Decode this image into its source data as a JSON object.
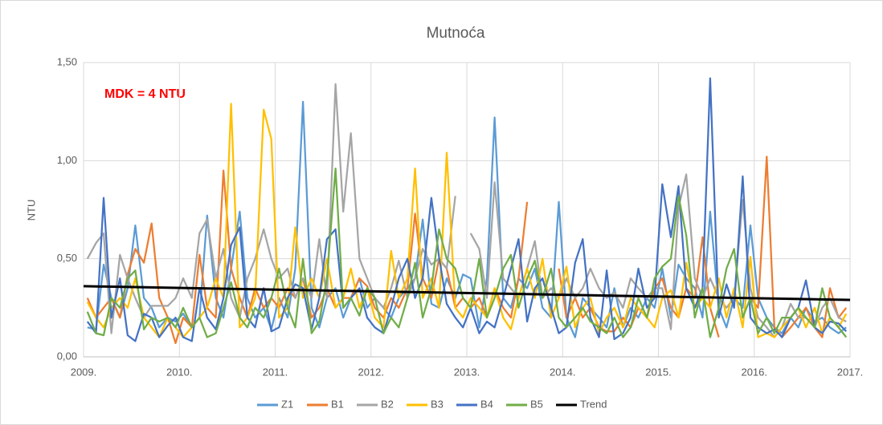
{
  "chart_data": {
    "type": "line",
    "title": "Mutnoća",
    "y_label": "NTU",
    "annotation": "MDK = 4 NTU",
    "xlim": [
      2009,
      2017
    ],
    "xticks": [
      {
        "value": 2009,
        "label": "2009."
      },
      {
        "value": 2010,
        "label": "2010."
      },
      {
        "value": 2011,
        "label": "2011."
      },
      {
        "value": 2012,
        "label": "2012."
      },
      {
        "value": 2013,
        "label": "2013."
      },
      {
        "value": 2014,
        "label": "2014."
      },
      {
        "value": 2015,
        "label": "2015."
      },
      {
        "value": 2016,
        "label": "2016."
      },
      {
        "value": 2017,
        "label": "2017."
      }
    ],
    "ylim": [
      0,
      1.5
    ],
    "yticks": [
      {
        "value": 0,
        "label": "0,00"
      },
      {
        "value": 0.5,
        "label": "0,50"
      },
      {
        "value": 1,
        "label": "1,00"
      },
      {
        "value": 1.5,
        "label": "1,50"
      }
    ],
    "grid": true,
    "legend": "bottom",
    "x": [
      2009.04,
      2009.13,
      2009.21,
      2009.29,
      2009.38,
      2009.46,
      2009.54,
      2009.63,
      2009.71,
      2009.79,
      2009.88,
      2009.96,
      2010.04,
      2010.13,
      2010.21,
      2010.29,
      2010.38,
      2010.46,
      2010.54,
      2010.63,
      2010.71,
      2010.79,
      2010.88,
      2010.96,
      2011.04,
      2011.13,
      2011.21,
      2011.29,
      2011.38,
      2011.46,
      2011.54,
      2011.63,
      2011.71,
      2011.79,
      2011.88,
      2011.96,
      2012.04,
      2012.13,
      2012.21,
      2012.29,
      2012.38,
      2012.46,
      2012.54,
      2012.63,
      2012.71,
      2012.79,
      2012.88,
      2012.96,
      2013.04,
      2013.13,
      2013.21,
      2013.29,
      2013.38,
      2013.46,
      2013.54,
      2013.63,
      2013.71,
      2013.79,
      2013.88,
      2013.96,
      2014.04,
      2014.13,
      2014.21,
      2014.29,
      2014.38,
      2014.46,
      2014.54,
      2014.63,
      2014.71,
      2014.79,
      2014.88,
      2014.96,
      2015.04,
      2015.13,
      2015.21,
      2015.29,
      2015.38,
      2015.46,
      2015.54,
      2015.63,
      2015.71,
      2015.79,
      2015.88,
      2015.96,
      2016.04,
      2016.13,
      2016.21,
      2016.29,
      2016.38,
      2016.46,
      2016.54,
      2016.63,
      2016.71,
      2016.79,
      2016.88,
      2016.96
    ],
    "series": [
      {
        "name": "Z1",
        "color": "#5b9bd5",
        "values": [
          0.15,
          0.14,
          0.47,
          0.3,
          0.2,
          0.35,
          0.67,
          0.3,
          0.25,
          0.15,
          0.2,
          0.18,
          0.22,
          0.15,
          0.2,
          0.72,
          0.3,
          0.2,
          0.45,
          0.74,
          0.3,
          0.2,
          0.25,
          0.14,
          0.3,
          0.2,
          0.45,
          1.3,
          0.25,
          0.15,
          0.3,
          0.35,
          0.2,
          0.3,
          0.4,
          0.25,
          0.3,
          0.25,
          0.2,
          0.3,
          0.35,
          0.4,
          0.7,
          0.27,
          0.25,
          0.4,
          0.3,
          0.42,
          0.4,
          0.15,
          0.4,
          1.22,
          0.3,
          0.25,
          0.4,
          0.35,
          0.45,
          0.25,
          0.2,
          0.79,
          0.2,
          0.1,
          0.3,
          0.25,
          0.2,
          0.15,
          0.35,
          0.15,
          0.25,
          0.2,
          0.3,
          0.25,
          0.45,
          0.2,
          0.47,
          0.4,
          0.35,
          0.2,
          0.74,
          0.25,
          0.15,
          0.3,
          0.25,
          0.67,
          0.3,
          0.2,
          0.15,
          0.12,
          0.2,
          0.15,
          0.25,
          0.18,
          0.2,
          0.15,
          0.12,
          0.15
        ]
      },
      {
        "name": "B1",
        "color": "#ed7d31",
        "values": [
          0.3,
          0.2,
          0.25,
          0.3,
          0.2,
          0.42,
          0.55,
          0.48,
          0.68,
          0.3,
          0.2,
          0.07,
          0.2,
          0.15,
          0.52,
          0.25,
          0.2,
          0.95,
          0.45,
          0.3,
          0.2,
          0.35,
          0.25,
          0.3,
          0.25,
          0.35,
          0.3,
          0.4,
          0.2,
          0.25,
          0.35,
          0.25,
          0.3,
          0.3,
          0.4,
          0.36,
          0.25,
          0.2,
          0.3,
          0.25,
          0.35,
          0.73,
          0.4,
          0.3,
          0.5,
          0.45,
          0.25,
          0.3,
          0.25,
          0.3,
          0.2,
          0.35,
          0.25,
          0.2,
          0.4,
          0.79,
          null,
          null,
          null,
          0.45,
          0.2,
          0.3,
          0.2,
          0.25,
          0.15,
          0.13,
          0.13,
          0.2,
          0.15,
          0.25,
          0.2,
          0.35,
          0.4,
          0.25,
          0.2,
          0.35,
          0.3,
          0.61,
          0.25,
          0.1,
          null,
          null,
          null,
          0.3,
          0.25,
          1.02,
          0.15,
          0.1,
          0.15,
          0.2,
          0.25,
          0.15,
          0.1,
          0.35,
          0.2,
          0.25
        ]
      },
      {
        "name": "B2",
        "color": "#a5a5a5",
        "values": [
          0.5,
          0.58,
          0.63,
          0.12,
          0.52,
          0.4,
          0.3,
          0.2,
          0.26,
          0.26,
          0.26,
          0.3,
          0.4,
          0.3,
          0.63,
          0.7,
          0.4,
          0.55,
          0.3,
          0.2,
          0.4,
          0.5,
          0.65,
          0.5,
          0.4,
          0.45,
          0.3,
          0.4,
          0.3,
          0.6,
          0.3,
          1.39,
          0.74,
          1.14,
          0.5,
          0.4,
          0.3,
          0.25,
          0.35,
          0.49,
          0.3,
          0.4,
          0.55,
          0.47,
          0.5,
          0.45,
          0.82,
          null,
          0.63,
          0.55,
          0.3,
          0.89,
          0.4,
          0.35,
          0.3,
          0.45,
          0.59,
          0.3,
          0.35,
          0.3,
          0.4,
          0.3,
          0.35,
          0.45,
          0.35,
          0.3,
          0.33,
          0.25,
          0.4,
          0.35,
          0.3,
          0.35,
          0.35,
          0.14,
          0.76,
          0.93,
          0.4,
          0.3,
          0.4,
          0.3,
          0.25,
          0.3,
          0.8,
          0.35,
          0.2,
          0.15,
          0.1,
          0.15,
          0.27,
          0.2,
          0.2,
          0.15,
          0.25,
          0.3,
          0.2,
          0.18
        ]
      },
      {
        "name": "B3",
        "color": "#ffc000",
        "values": [
          0.28,
          0.2,
          0.15,
          0.25,
          0.3,
          0.25,
          0.4,
          0.2,
          0.15,
          0.1,
          0.2,
          0.15,
          0.1,
          0.15,
          0.2,
          0.25,
          0.4,
          0.3,
          1.29,
          0.15,
          0.2,
          0.3,
          1.26,
          1.11,
          0.2,
          0.25,
          0.66,
          0.3,
          0.4,
          0.3,
          0.5,
          0.25,
          0.3,
          0.45,
          0.25,
          0.35,
          0.2,
          0.15,
          0.54,
          0.3,
          0.4,
          0.96,
          0.3,
          0.4,
          0.25,
          1.04,
          0.25,
          0.2,
          0.3,
          0.25,
          0.2,
          0.35,
          0.2,
          0.14,
          0.3,
          0.45,
          0.3,
          0.5,
          0.2,
          0.3,
          0.46,
          0.15,
          0.25,
          0.3,
          0.12,
          0.2,
          0.25,
          0.15,
          0.3,
          0.25,
          0.2,
          0.15,
          0.3,
          0.34,
          0.2,
          0.48,
          0.25,
          0.3,
          0.25,
          0.4,
          0.2,
          0.35,
          0.15,
          0.51,
          0.1,
          0.12,
          0.1,
          0.15,
          0.2,
          0.25,
          0.15,
          0.25,
          0.12,
          0.2,
          0.15,
          0.22
        ]
      },
      {
        "name": "B4",
        "color": "#4472c4",
        "values": [
          0.18,
          0.12,
          0.81,
          0.2,
          0.4,
          0.11,
          0.08,
          0.22,
          0.2,
          0.1,
          0.16,
          0.2,
          0.1,
          0.08,
          0.35,
          0.2,
          0.14,
          0.3,
          0.57,
          0.66,
          0.2,
          0.15,
          0.35,
          0.13,
          0.15,
          0.3,
          0.37,
          0.35,
          0.14,
          0.3,
          0.6,
          0.65,
          0.25,
          0.3,
          0.35,
          0.2,
          0.15,
          0.12,
          0.25,
          0.4,
          0.5,
          0.3,
          0.4,
          0.81,
          0.51,
          0.27,
          0.2,
          0.15,
          0.25,
          0.12,
          0.18,
          0.15,
          0.3,
          0.45,
          0.6,
          0.18,
          0.35,
          0.4,
          0.25,
          0.12,
          0.15,
          0.48,
          0.6,
          0.2,
          0.1,
          0.44,
          0.09,
          0.12,
          0.2,
          0.45,
          0.25,
          0.3,
          0.88,
          0.61,
          0.87,
          0.35,
          0.25,
          0.35,
          1.42,
          0.2,
          0.37,
          0.25,
          0.92,
          0.2,
          0.15,
          0.12,
          0.14,
          0.1,
          0.2,
          0.25,
          0.39,
          0.15,
          0.12,
          0.18,
          0.17,
          0.13
        ]
      },
      {
        "name": "B5",
        "color": "#70ad47",
        "values": [
          0.23,
          0.12,
          0.11,
          0.3,
          0.25,
          0.4,
          0.44,
          0.14,
          0.2,
          0.18,
          0.2,
          0.15,
          0.25,
          0.15,
          0.2,
          0.1,
          0.12,
          0.25,
          0.38,
          0.2,
          0.15,
          0.25,
          0.2,
          0.3,
          0.45,
          0.25,
          0.15,
          0.5,
          0.12,
          0.18,
          0.4,
          0.96,
          0.25,
          0.3,
          0.21,
          0.35,
          0.3,
          0.12,
          0.2,
          0.15,
          0.3,
          0.48,
          0.2,
          0.35,
          0.65,
          0.5,
          0.45,
          0.3,
          0.25,
          0.5,
          0.2,
          0.3,
          0.45,
          0.52,
          0.25,
          0.4,
          0.49,
          0.3,
          0.45,
          0.2,
          0.15,
          0.2,
          0.25,
          0.18,
          0.15,
          0.12,
          0.2,
          0.1,
          0.15,
          0.3,
          0.2,
          0.4,
          0.46,
          0.5,
          0.82,
          0.62,
          0.2,
          0.35,
          0.1,
          0.25,
          0.45,
          0.55,
          0.2,
          0.3,
          0.12,
          0.2,
          0.12,
          0.2,
          0.2,
          0.25,
          0.2,
          0.15,
          0.35,
          0.2,
          0.15,
          0.1
        ]
      },
      {
        "name": "Trend",
        "color": "#000000",
        "x": [
          2009,
          2017
        ],
        "values": [
          0.36,
          0.29
        ]
      }
    ]
  }
}
